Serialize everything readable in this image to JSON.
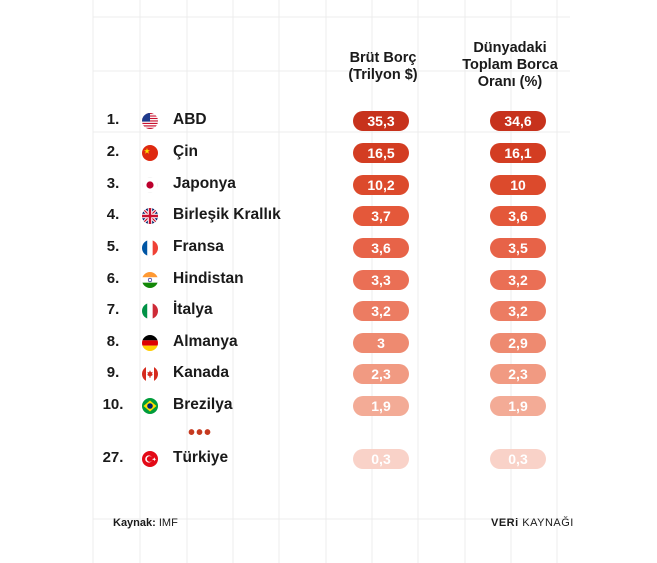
{
  "chart_data": {
    "type": "table",
    "columns": [
      "Brüt Borç (Trilyon $)",
      "Dünyadaki Toplam Borca Oranı (%)"
    ],
    "column_headers": {
      "debt": [
        "Brüt Borç",
        "(Trilyon $)"
      ],
      "share": [
        "Dünyadaki",
        "Toplam Borca",
        "Oranı (%)"
      ]
    },
    "rows": [
      {
        "rank": "1.",
        "country": "ABD",
        "flag": "us-flag-icon",
        "debt": "35,3",
        "share": "34,6",
        "debt_value": 35.3,
        "share_value": 34.6
      },
      {
        "rank": "2.",
        "country": "Çin",
        "flag": "china-flag-icon",
        "debt": "16,5",
        "share": "16,1",
        "debt_value": 16.5,
        "share_value": 16.1
      },
      {
        "rank": "3.",
        "country": "Japonya",
        "flag": "japan-flag-icon",
        "debt": "10,2",
        "share": "10",
        "debt_value": 10.2,
        "share_value": 10
      },
      {
        "rank": "4.",
        "country": "Birleşik Krallık",
        "flag": "uk-flag-icon",
        "debt": "3,7",
        "share": "3,6",
        "debt_value": 3.7,
        "share_value": 3.6
      },
      {
        "rank": "5.",
        "country": "Fransa",
        "flag": "france-flag-icon",
        "debt": "3,6",
        "share": "3,5",
        "debt_value": 3.6,
        "share_value": 3.5
      },
      {
        "rank": "6.",
        "country": "Hindistan",
        "flag": "india-flag-icon",
        "debt": "3,3",
        "share": "3,2",
        "debt_value": 3.3,
        "share_value": 3.2
      },
      {
        "rank": "7.",
        "country": "İtalya",
        "flag": "italy-flag-icon",
        "debt": "3,2",
        "share": "3,2",
        "debt_value": 3.2,
        "share_value": 3.2
      },
      {
        "rank": "8.",
        "country": "Almanya",
        "flag": "germany-flag-icon",
        "debt": "3",
        "share": "2,9",
        "debt_value": 3,
        "share_value": 2.9
      },
      {
        "rank": "9.",
        "country": "Kanada",
        "flag": "canada-flag-icon",
        "debt": "2,3",
        "share": "2,3",
        "debt_value": 2.3,
        "share_value": 2.3
      },
      {
        "rank": "10.",
        "country": "Brezilya",
        "flag": "brazil-flag-icon",
        "debt": "1,9",
        "share": "1,9",
        "debt_value": 1.9,
        "share_value": 1.9
      }
    ],
    "ellipsis": "•••",
    "extra_row": {
      "rank": "27.",
      "country": "Türkiye",
      "flag": "turkey-flag-icon",
      "debt": "0,3",
      "share": "0,3",
      "debt_value": 0.3,
      "share_value": 0.3
    },
    "pill_colors": [
      "#c7321c",
      "#d33d22",
      "#dc4a2c",
      "#e4583a",
      "#e76348",
      "#ea6f55",
      "#ec7c62",
      "#ee8a70",
      "#f19a82",
      "#f3ab96",
      "#f9d2c8"
    ]
  },
  "footer": {
    "source_label": "Kaynak:",
    "source_value": "IMF",
    "brand_bold": "VERi",
    "brand_rest": "KAYNAĞI"
  }
}
